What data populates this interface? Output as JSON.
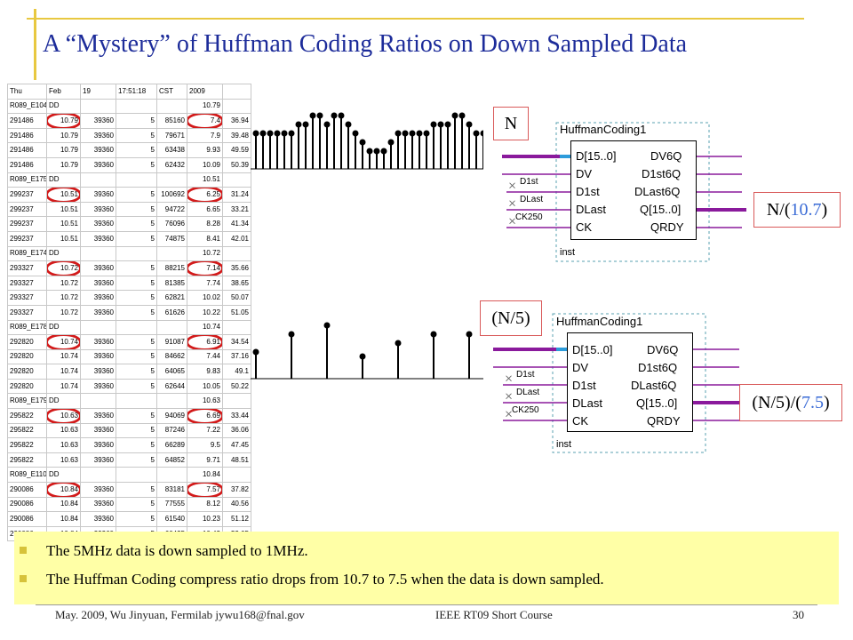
{
  "title": "A “Mystery” of Huffman Coding Ratios on Down Sampled Data",
  "table": {
    "header": [
      "Thu",
      "Feb",
      "19",
      "17:51:18",
      "CST",
      "",
      "2009",
      ""
    ],
    "rows": [
      [
        "R089_E104",
        "DD",
        "",
        "",
        "",
        "",
        "10.79",
        ""
      ],
      [
        "291486",
        "10.79",
        "39360",
        "5",
        "85160",
        "",
        "7.4",
        "36.94"
      ],
      [
        "291486",
        "10.79",
        "39360",
        "5",
        "79671",
        "",
        "7.9",
        "39.48"
      ],
      [
        "291486",
        "10.79",
        "39360",
        "5",
        "63438",
        "",
        "9.93",
        "49.59"
      ],
      [
        "291486",
        "10.79",
        "39360",
        "5",
        "62432",
        "",
        "10.09",
        "50.39"
      ],
      [
        "R089_E175",
        "DD",
        "",
        "",
        "",
        "",
        "10.51",
        ""
      ],
      [
        "299237",
        "10.51",
        "39360",
        "5",
        "100692",
        "",
        "6.25",
        "31.24"
      ],
      [
        "299237",
        "10.51",
        "39360",
        "5",
        "94722",
        "",
        "6.65",
        "33.21"
      ],
      [
        "299237",
        "10.51",
        "39360",
        "5",
        "76096",
        "",
        "8.28",
        "41.34"
      ],
      [
        "299237",
        "10.51",
        "39360",
        "5",
        "74875",
        "",
        "8.41",
        "42.01"
      ],
      [
        "R089_E174",
        "DD",
        "",
        "",
        "",
        "",
        "10.72",
        ""
      ],
      [
        "293327",
        "10.72",
        "39360",
        "5",
        "88215",
        "",
        "7.14",
        "35.66"
      ],
      [
        "293327",
        "10.72",
        "39360",
        "5",
        "81385",
        "",
        "7.74",
        "38.65"
      ],
      [
        "293327",
        "10.72",
        "39360",
        "5",
        "62821",
        "",
        "10.02",
        "50.07"
      ],
      [
        "293327",
        "10.72",
        "39360",
        "5",
        "61626",
        "",
        "10.22",
        "51.05"
      ],
      [
        "R089_E178",
        "DD",
        "",
        "",
        "",
        "",
        "10.74",
        ""
      ],
      [
        "292820",
        "10.74",
        "39360",
        "5",
        "91087",
        "",
        "6.91",
        "34.54"
      ],
      [
        "292820",
        "10.74",
        "39360",
        "5",
        "84662",
        "",
        "7.44",
        "37.16"
      ],
      [
        "292820",
        "10.74",
        "39360",
        "5",
        "64065",
        "",
        "9.83",
        "49.1"
      ],
      [
        "292820",
        "10.74",
        "39360",
        "5",
        "62644",
        "",
        "10.05",
        "50.22"
      ],
      [
        "R089_E179",
        "DD",
        "",
        "",
        "",
        "",
        "10.63",
        ""
      ],
      [
        "295822",
        "10.63",
        "39360",
        "5",
        "94069",
        "",
        "6.69",
        "33.44"
      ],
      [
        "295822",
        "10.63",
        "39360",
        "5",
        "87246",
        "",
        "7.22",
        "36.06"
      ],
      [
        "295822",
        "10.63",
        "39360",
        "5",
        "66289",
        "",
        "9.5",
        "47.45"
      ],
      [
        "295822",
        "10.63",
        "39360",
        "5",
        "64852",
        "",
        "9.71",
        "48.51"
      ],
      [
        "R089_E110",
        "DD",
        "",
        "",
        "",
        "",
        "10.84",
        ""
      ],
      [
        "290086",
        "10.84",
        "39360",
        "5",
        "83181",
        "",
        "7.57",
        "37.82"
      ],
      [
        "290086",
        "10.84",
        "39360",
        "5",
        "77555",
        "",
        "8.12",
        "40.56"
      ],
      [
        "290086",
        "10.84",
        "39360",
        "5",
        "61540",
        "",
        "10.23",
        "51.12"
      ],
      [
        "290086",
        "10.84",
        "39360",
        "5",
        "60435",
        "",
        "10.42",
        "52.05"
      ]
    ]
  },
  "labels": {
    "n": "N",
    "n_ratio_prefix": "N/(",
    "n_ratio_value": "10.7",
    "n_ratio_suffix": ")",
    "n5": "(N/5)",
    "n5_ratio_prefix": "(N/5)/(",
    "n5_ratio_value": "7.5",
    "n5_ratio_suffix": ")"
  },
  "block": {
    "name": "HuffmanCoding1",
    "inputs": [
      "D[15..0]",
      "DV",
      "D1st",
      "DLast",
      "CK"
    ],
    "outputs": [
      "DV6Q",
      "D1st6Q",
      "DLast6Q",
      "Q[15..0]",
      "QRDY"
    ],
    "signals": [
      "D1st",
      "DLast",
      "CK250"
    ],
    "inst": "inst"
  },
  "bullets": [
    "The 5MHz data is down sampled to 1MHz.",
    "The Huffman Coding compress ratio drops from 10.7 to 7.5 when the data is down sampled."
  ],
  "footer": {
    "left": "May. 2009, Wu Jinyuan, Fermilab jywu168@fnal.gov",
    "center": "IEEE RT09 Short Course",
    "page": "30"
  },
  "colors": {
    "title": "#1d2c9a",
    "accent": "#3a6bd6",
    "ring": "#d21a1a",
    "bullet_bg": "#ffffa6"
  },
  "waveform_top": [
    4,
    4,
    4,
    4,
    4,
    4,
    5,
    5,
    6,
    6,
    5,
    6,
    6,
    5,
    4,
    3,
    2,
    2,
    2,
    3,
    4,
    4,
    4,
    4,
    4,
    5,
    5,
    5,
    6,
    6,
    5,
    4,
    4
  ],
  "waveform_bottom": [
    3,
    5,
    6,
    2.5,
    4,
    5,
    5
  ]
}
